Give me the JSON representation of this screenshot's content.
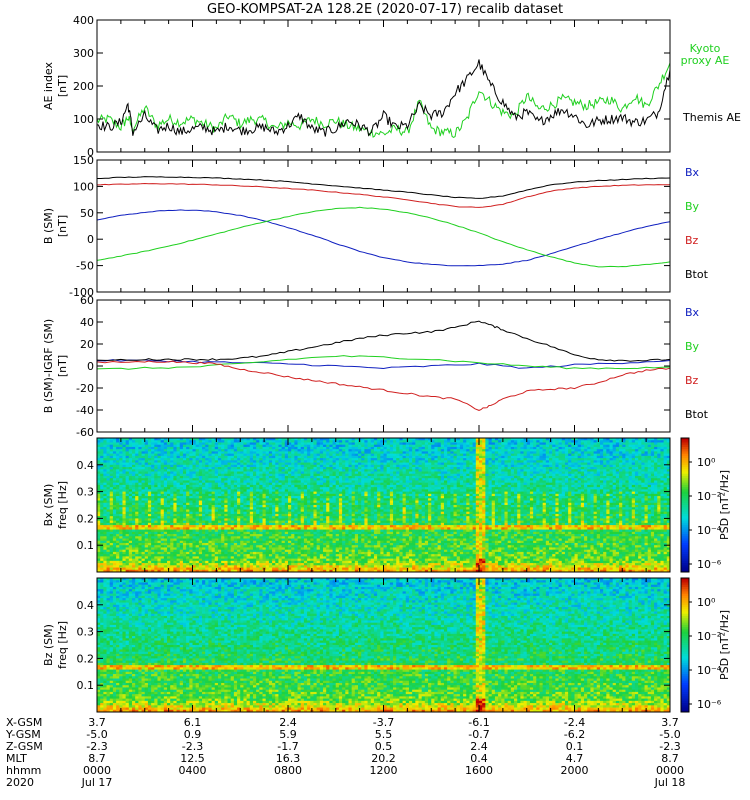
{
  "title": "GEO-KOMPSAT-2A 128.2E (2020-07-17) recalib dataset",
  "colors": {
    "black": "#000000",
    "red": "#d02020",
    "green": "#20d020",
    "blue": "#1020c0"
  },
  "chart_data": [
    {
      "type": "line",
      "ylabel": "AE index",
      "yunit": "[nT]",
      "ylim": [
        0,
        400
      ],
      "yticks": [
        "0",
        "100",
        "200",
        "300",
        "400"
      ],
      "xlim": [
        0,
        24
      ],
      "legend_position": "right",
      "series": [
        {
          "name": "Kyoto\nproxy AE",
          "label_lines": [
            "Kyoto",
            "proxy AE"
          ],
          "color": "#20d020",
          "x": [
            0,
            0.5,
            1,
            1.3,
            1.5,
            2,
            2.5,
            3,
            3.5,
            4,
            4.5,
            5,
            5.5,
            6,
            6.5,
            7,
            7.5,
            8,
            8.5,
            9,
            9.5,
            10,
            10.5,
            11,
            11.5,
            12,
            12.5,
            13,
            13.5,
            14,
            14.5,
            15,
            15.5,
            16,
            16.5,
            17,
            17.5,
            18,
            18.5,
            19,
            19.5,
            20,
            20.5,
            21,
            21.5,
            22,
            22.5,
            23,
            23.5,
            24
          ],
          "y": [
            95,
            100,
            75,
            105,
            70,
            135,
            80,
            100,
            90,
            100,
            85,
            70,
            110,
            85,
            100,
            95,
            70,
            90,
            80,
            100,
            85,
            95,
            80,
            70,
            60,
            55,
            70,
            60,
            150,
            70,
            60,
            55,
            100,
            190,
            150,
            120,
            110,
            170,
            130,
            140,
            160,
            150,
            140,
            150,
            160,
            130,
            170,
            140,
            200,
            270
          ]
        },
        {
          "name": "Themis AE",
          "label_lines": [
            "Themis AE"
          ],
          "color": "#000000",
          "x": [
            0,
            0.5,
            1,
            1.3,
            1.5,
            2,
            2.5,
            3,
            3.5,
            4,
            4.5,
            5,
            5.5,
            6,
            6.5,
            7,
            7.5,
            8,
            8.5,
            9,
            9.5,
            10,
            10.5,
            11,
            11.5,
            12,
            12.5,
            13,
            13.5,
            14,
            14.5,
            15,
            15.5,
            16,
            16.5,
            17,
            17.5,
            18,
            18.5,
            19,
            19.5,
            20,
            20.5,
            21,
            21.5,
            22,
            22.5,
            23,
            23.5,
            24
          ],
          "y": [
            85,
            75,
            90,
            145,
            60,
            110,
            65,
            80,
            60,
            70,
            75,
            60,
            80,
            65,
            70,
            75,
            60,
            80,
            110,
            70,
            60,
            70,
            95,
            80,
            60,
            110,
            75,
            80,
            140,
            110,
            120,
            180,
            220,
            270,
            200,
            150,
            105,
            120,
            90,
            110,
            130,
            110,
            80,
            95,
            100,
            105,
            90,
            95,
            120,
            250
          ]
        }
      ]
    },
    {
      "type": "line",
      "ylabel": "B (SM)",
      "yunit": "[nT]",
      "ylim": [
        -100,
        150
      ],
      "yticks": [
        "-100",
        "-50",
        "0",
        "50",
        "100",
        "150"
      ],
      "xlim": [
        0,
        24
      ],
      "legend_position": "right",
      "series": [
        {
          "name": "Bx",
          "color": "#1020c0",
          "x": [
            0,
            1,
            2,
            3,
            4,
            5,
            6,
            7,
            8,
            9,
            10,
            11,
            12,
            13,
            14,
            15,
            16,
            17,
            18,
            19,
            20,
            21,
            22,
            23,
            24
          ],
          "y": [
            37,
            45,
            51,
            55,
            55,
            52,
            45,
            35,
            22,
            8,
            -8,
            -23,
            -35,
            -43,
            -48,
            -50,
            -50,
            -47,
            -40,
            -28,
            -14,
            0,
            12,
            24,
            33
          ]
        },
        {
          "name": "By",
          "color": "#20d020",
          "x": [
            0,
            1,
            2,
            3,
            4,
            5,
            6,
            7,
            8,
            9,
            10,
            11,
            12,
            13,
            14,
            15,
            16,
            17,
            18,
            19,
            20,
            21,
            22,
            23,
            24
          ],
          "y": [
            -40,
            -32,
            -23,
            -13,
            -2,
            10,
            22,
            33,
            43,
            52,
            58,
            60,
            57,
            50,
            40,
            27,
            12,
            -5,
            -20,
            -33,
            -45,
            -52,
            -52,
            -48,
            -43
          ]
        },
        {
          "name": "Bz",
          "color": "#d02020",
          "x": [
            0,
            1,
            2,
            3,
            4,
            5,
            6,
            7,
            8,
            9,
            10,
            11,
            12,
            13,
            14,
            15,
            16,
            17,
            18,
            19,
            20,
            21,
            22,
            23,
            24
          ],
          "y": [
            103,
            104,
            105,
            105,
            104,
            103,
            101,
            99,
            96,
            93,
            89,
            85,
            80,
            75,
            68,
            62,
            60,
            66,
            80,
            91,
            97,
            100,
            102,
            103,
            103
          ]
        },
        {
          "name": "Btot",
          "color": "#000000",
          "x": [
            0,
            1,
            2,
            3,
            4,
            5,
            6,
            7,
            8,
            9,
            10,
            11,
            12,
            13,
            14,
            15,
            16,
            17,
            18,
            19,
            20,
            21,
            22,
            23,
            24
          ],
          "y": [
            115,
            117,
            118,
            118,
            117,
            116,
            114,
            112,
            109,
            105,
            101,
            97,
            93,
            89,
            84,
            79,
            77,
            82,
            93,
            103,
            108,
            111,
            113,
            115,
            116
          ]
        }
      ]
    },
    {
      "type": "line",
      "ylabel": "B (SM)-IGRF (SM)",
      "yunit": "[nT]",
      "ylim": [
        -60,
        60
      ],
      "yticks": [
        "-60",
        "-40",
        "-20",
        "0",
        "20",
        "40",
        "60"
      ],
      "xlim": [
        0,
        24
      ],
      "legend_position": "right",
      "series": [
        {
          "name": "Bx",
          "color": "#1020c0",
          "x": [
            0,
            2,
            4,
            6,
            8,
            10,
            12,
            14,
            16,
            18,
            20,
            22,
            24
          ],
          "y": [
            5,
            5,
            4,
            3,
            2,
            0,
            -2,
            0,
            2,
            -2,
            1,
            3,
            5
          ]
        },
        {
          "name": "By",
          "color": "#20d020",
          "x": [
            0,
            2,
            4,
            6,
            8,
            10,
            12,
            14,
            16,
            18,
            20,
            22,
            24
          ],
          "y": [
            -3,
            -2,
            -1,
            2,
            6,
            9,
            8,
            6,
            3,
            0,
            -2,
            -2,
            -1
          ]
        },
        {
          "name": "Bz",
          "color": "#d02020",
          "x": [
            0,
            2,
            3,
            4,
            5,
            6,
            7,
            8,
            9,
            10,
            11,
            12,
            13,
            14,
            15,
            16,
            16.5,
            17,
            18,
            19,
            20,
            21,
            22,
            23,
            24
          ],
          "y": [
            3,
            4,
            4,
            3,
            2,
            -3,
            -6,
            -10,
            -13,
            -16,
            -19,
            -22,
            -25,
            -28,
            -30,
            -40,
            -36,
            -30,
            -23,
            -21,
            -20,
            -15,
            -8,
            -4,
            -2
          ]
        },
        {
          "name": "Btot",
          "color": "#000000",
          "x": [
            0,
            2,
            3,
            4,
            5,
            6,
            7,
            8,
            9,
            10,
            11,
            12,
            13,
            14,
            15,
            16,
            16.5,
            17,
            18,
            19,
            20,
            21,
            22,
            23,
            24
          ],
          "y": [
            5,
            6,
            6,
            6,
            6,
            7,
            9,
            13,
            17,
            21,
            25,
            28,
            30,
            31,
            35,
            41,
            37,
            33,
            25,
            18,
            10,
            6,
            5,
            5,
            6
          ]
        }
      ]
    },
    {
      "type": "heatmap",
      "ylabel": "Bx (SM)",
      "yunit": "freq [Hz]",
      "ylim": [
        0,
        0.5
      ],
      "yticks": [
        "0.1",
        "0.2",
        "0.3",
        "0.4"
      ],
      "xlim": [
        0,
        24
      ],
      "colorbar_label": "PSD [nT²/Hz]",
      "colorbar_ticks": [
        "10⁰",
        "10⁻²",
        "10⁻⁴",
        "10⁻⁶"
      ]
    },
    {
      "type": "heatmap",
      "ylabel": "Bz (SM)",
      "yunit": "freq [Hz]",
      "ylim": [
        0,
        0.5
      ],
      "yticks": [
        "0.1",
        "0.2",
        "0.3",
        "0.4"
      ],
      "xlim": [
        0,
        24
      ],
      "colorbar_label": "PSD [nT²/Hz]",
      "colorbar_ticks": [
        "10⁰",
        "10⁻²",
        "10⁻⁴",
        "10⁻⁶"
      ]
    }
  ],
  "ephemeris": {
    "row_labels": [
      "X-GSM",
      "Y-GSM",
      "Z-GSM",
      "MLT",
      "hhmm",
      "2020"
    ],
    "columns": [
      {
        "x": 0,
        "values": [
          "3.7",
          "-5.0",
          "-2.3",
          "8.7",
          "0000",
          "Jul 17"
        ]
      },
      {
        "x": 4,
        "values": [
          "6.1",
          "0.9",
          "-2.3",
          "12.5",
          "0400",
          ""
        ]
      },
      {
        "x": 8,
        "values": [
          "2.4",
          "5.9",
          "-1.7",
          "16.3",
          "0800",
          ""
        ]
      },
      {
        "x": 12,
        "values": [
          "-3.7",
          "5.5",
          "0.5",
          "20.2",
          "1200",
          ""
        ]
      },
      {
        "x": 16,
        "values": [
          "-6.1",
          "-0.7",
          "2.4",
          "0.4",
          "1600",
          ""
        ]
      },
      {
        "x": 20,
        "values": [
          "-2.4",
          "-6.2",
          "0.1",
          "4.7",
          "2000",
          ""
        ]
      },
      {
        "x": 24,
        "values": [
          "3.7",
          "-5.0",
          "-2.3",
          "8.7",
          "0000",
          "Jul 18"
        ]
      }
    ]
  }
}
